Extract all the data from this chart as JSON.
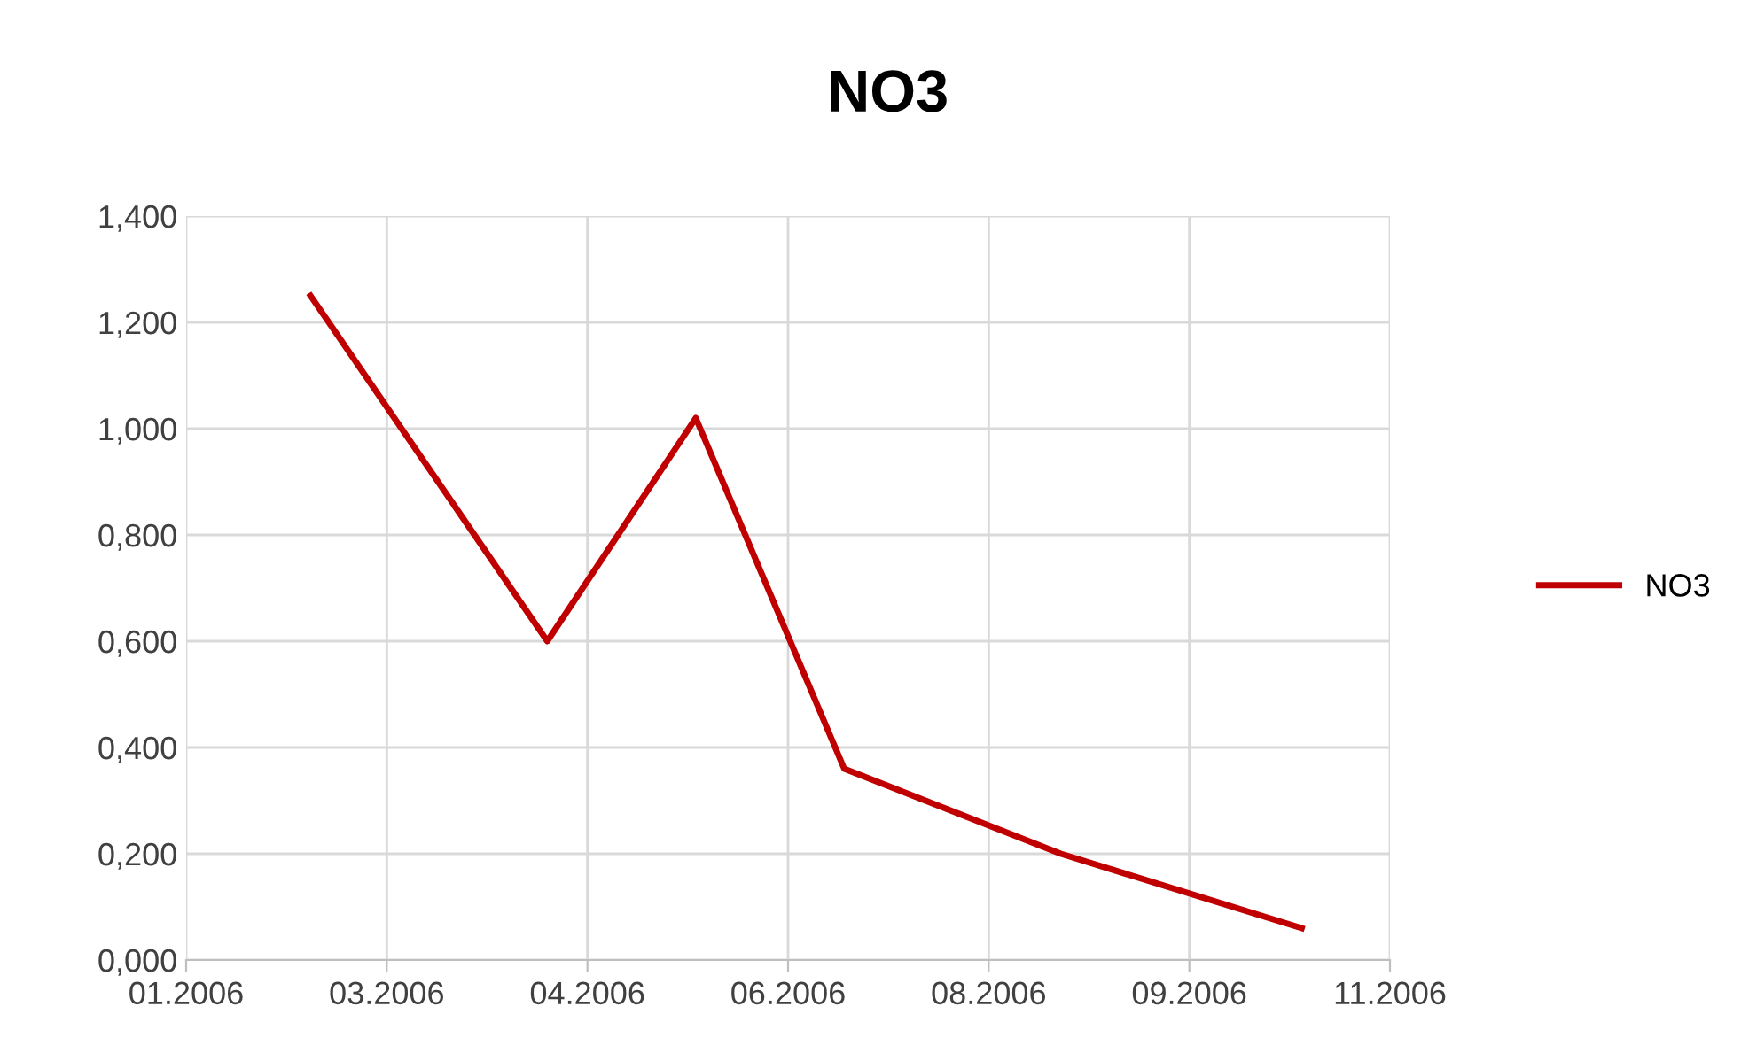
{
  "chart_data": {
    "type": "line",
    "title": "NO3",
    "x": [
      "2006-02-15",
      "2006-04-15",
      "2006-05-22",
      "2006-06-28",
      "2006-08-21",
      "2006-10-20"
    ],
    "series": [
      {
        "name": "NO3",
        "color": "#c00000",
        "values": [
          1.25,
          0.6,
          1.02,
          0.36,
          0.2,
          0.06
        ]
      }
    ],
    "xlim": [
      "2006-01-15",
      "2006-11-11"
    ],
    "xticks": [
      {
        "value": "2006-01-15",
        "label": "01.2006"
      },
      {
        "value": "2006-03-06",
        "label": "03.2006"
      },
      {
        "value": "2006-04-25",
        "label": "04.2006"
      },
      {
        "value": "2006-06-14",
        "label": "06.2006"
      },
      {
        "value": "2006-08-03",
        "label": "08.2006"
      },
      {
        "value": "2006-09-22",
        "label": "09.2006"
      },
      {
        "value": "2006-11-11",
        "label": "11.2006"
      }
    ],
    "ylim": [
      0,
      1.4
    ],
    "yticks": [
      {
        "value": 0,
        "label": "0,000"
      },
      {
        "value": 0.2,
        "label": "0,200"
      },
      {
        "value": 0.4,
        "label": "0,400"
      },
      {
        "value": 0.6,
        "label": "0,600"
      },
      {
        "value": 0.8,
        "label": "0,800"
      },
      {
        "value": 1.0,
        "label": "1,000"
      },
      {
        "value": 1.2,
        "label": "1,200"
      },
      {
        "value": 1.4,
        "label": "1,400"
      }
    ],
    "grid": true,
    "legend": "right",
    "marker": "none",
    "line_style": "solid"
  }
}
